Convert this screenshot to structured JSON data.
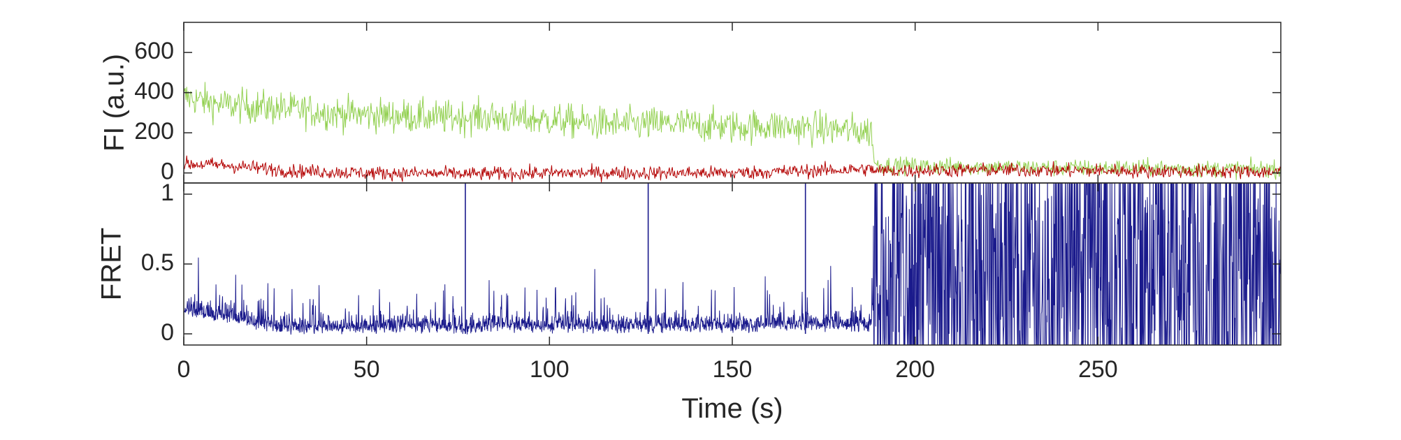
{
  "chart_data": [
    {
      "type": "line",
      "panel": "top",
      "ylabel": "FI (a.u.)",
      "xlabel": "",
      "xlim": [
        0,
        300
      ],
      "ylim": [
        -50,
        750
      ],
      "yticks": [
        0,
        200,
        400,
        600
      ],
      "ytick_labels": [
        "0",
        "200",
        "400",
        "600"
      ],
      "xticks": [
        0,
        50,
        100,
        150,
        200,
        250
      ],
      "grid": false,
      "series": [
        {
          "color": "#92d050",
          "x": [
            0,
            10,
            20,
            30,
            40,
            50,
            60,
            70,
            80,
            90,
            100,
            110,
            120,
            130,
            140,
            150,
            160,
            170,
            180,
            188,
            189,
            200,
            220,
            240,
            260,
            280,
            300
          ],
          "values": [
            380,
            340,
            330,
            315,
            300,
            290,
            285,
            275,
            280,
            270,
            265,
            250,
            240,
            245,
            240,
            230,
            235,
            225,
            215,
            205,
            40,
            35,
            30,
            25,
            25,
            20,
            20
          ],
          "noise": 110
        },
        {
          "color": "#b30000",
          "x": [
            0,
            10,
            20,
            30,
            50,
            80,
            100,
            150,
            180,
            188,
            189,
            220,
            260,
            300
          ],
          "values": [
            45,
            40,
            25,
            10,
            0,
            -5,
            0,
            0,
            15,
            20,
            10,
            15,
            10,
            5
          ],
          "noise": 45
        }
      ]
    },
    {
      "type": "line",
      "panel": "bottom",
      "ylabel": "FRET",
      "xlabel": "Time (s)",
      "xlim": [
        0,
        300
      ],
      "ylim": [
        -0.08,
        1.08
      ],
      "yticks": [
        0,
        0.5,
        1
      ],
      "ytick_labels": [
        "0",
        "0.5",
        "1"
      ],
      "xticks": [
        0,
        50,
        100,
        150,
        200,
        250
      ],
      "xtick_labels": [
        "0",
        "50",
        "100",
        "150",
        "200",
        "250"
      ],
      "grid": false,
      "series": [
        {
          "color": "#1a1a8c",
          "x": [
            0,
            5,
            10,
            15,
            20,
            30,
            50,
            100,
            150,
            188,
            189,
            300
          ],
          "values": [
            0.18,
            0.15,
            0.14,
            0.12,
            0.07,
            0.05,
            0.05,
            0.06,
            0.06,
            0.07,
            0.4,
            0.4
          ],
          "noise_pre": 0.07,
          "spikes": [
            {
              "x": 77,
              "value": 1.08
            },
            {
              "x": 127,
              "value": 1.08
            },
            {
              "x": 170,
              "value": 1.08
            }
          ]
        }
      ]
    }
  ]
}
